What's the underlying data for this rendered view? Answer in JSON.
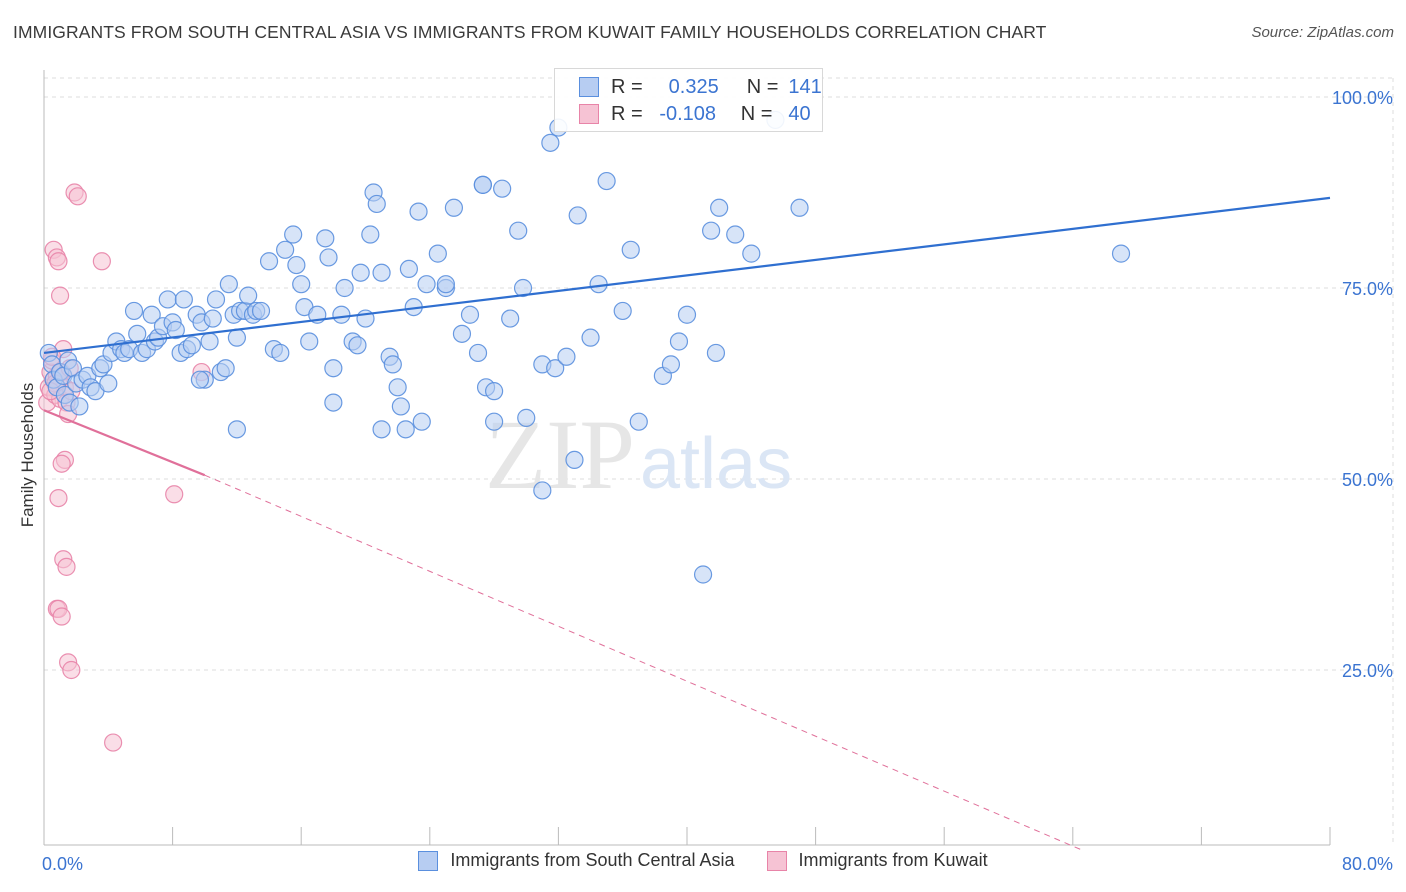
{
  "title": "IMMIGRANTS FROM SOUTH CENTRAL ASIA VS IMMIGRANTS FROM KUWAIT FAMILY HOUSEHOLDS CORRELATION CHART",
  "source": "Source: ZipAtlas.com",
  "watermark": {
    "part1": "ZIP",
    "part2": "atlas"
  },
  "legend": {
    "blue": {
      "r_label": "R =",
      "r_value": "0.325",
      "n_label": "N =",
      "n_value": "141"
    },
    "pink": {
      "r_label": "R =",
      "r_value": "-0.108",
      "n_label": "N =",
      "n_value": "40"
    }
  },
  "colors": {
    "blue": "#5a8fde",
    "blue_fill": "#b7cdf2",
    "blue_line": "#2f6fd0",
    "pink": "#e884a8",
    "pink_fill": "#f6c3d4",
    "pink_line": "#e0709a",
    "axis_text": "#3b74d1",
    "grid": "#dddddd"
  },
  "chart_data": {
    "type": "scatter",
    "title": "IMMIGRANTS FROM SOUTH CENTRAL ASIA VS IMMIGRANTS FROM KUWAIT FAMILY HOUSEHOLDS CORRELATION CHART",
    "xlabel": "",
    "ylabel": "Family Households",
    "xlim": [
      0,
      80
    ],
    "ylim": [
      0,
      105
    ],
    "x_tick_labels": [
      "0.0%",
      "80.0%"
    ],
    "y_ticks": [
      25,
      50,
      75,
      100
    ],
    "y_tick_labels": [
      "25.0%",
      "50.0%",
      "75.0%",
      "100.0%"
    ],
    "grid": true,
    "legend_position": "bottom",
    "series": [
      {
        "name": "Immigrants from South Central Asia",
        "color": "#5a8fde",
        "trend": {
          "x": [
            0,
            80
          ],
          "y": [
            66.5,
            86.8
          ]
        },
        "points": [
          [
            0.3,
            66.5
          ],
          [
            0.5,
            65
          ],
          [
            0.6,
            63
          ],
          [
            0.8,
            62
          ],
          [
            1.0,
            64
          ],
          [
            1.2,
            63.5
          ],
          [
            1.3,
            61
          ],
          [
            1.5,
            65.5
          ],
          [
            1.6,
            60
          ],
          [
            1.8,
            64.5
          ],
          [
            2.0,
            62.5
          ],
          [
            2.2,
            59.5
          ],
          [
            2.4,
            63
          ],
          [
            2.7,
            63.5
          ],
          [
            2.9,
            62
          ],
          [
            3.2,
            61.5
          ],
          [
            3.5,
            64.5
          ],
          [
            3.7,
            65
          ],
          [
            4.0,
            62.5
          ],
          [
            4.2,
            66.5
          ],
          [
            4.5,
            68
          ],
          [
            4.8,
            67
          ],
          [
            5.0,
            66.5
          ],
          [
            5.3,
            67
          ],
          [
            5.6,
            72
          ],
          [
            5.8,
            69
          ],
          [
            6.1,
            66.5
          ],
          [
            6.4,
            67
          ],
          [
            6.7,
            71.5
          ],
          [
            6.9,
            68
          ],
          [
            7.1,
            68.5
          ],
          [
            7.4,
            70
          ],
          [
            7.7,
            73.5
          ],
          [
            8.0,
            70.5
          ],
          [
            8.2,
            69.5
          ],
          [
            8.5,
            66.5
          ],
          [
            8.7,
            73.5
          ],
          [
            8.9,
            67
          ],
          [
            9.2,
            67.5
          ],
          [
            9.5,
            71.5
          ],
          [
            9.8,
            70.5
          ],
          [
            10.0,
            63
          ],
          [
            10.3,
            68
          ],
          [
            10.5,
            71
          ],
          [
            10.7,
            73.5
          ],
          [
            11.0,
            64
          ],
          [
            11.3,
            64.5
          ],
          [
            11.5,
            75.5
          ],
          [
            11.8,
            71.5
          ],
          [
            12.0,
            68.5
          ],
          [
            12.2,
            72
          ],
          [
            12.5,
            72
          ],
          [
            12.7,
            74
          ],
          [
            13.0,
            71.5
          ],
          [
            13.2,
            72
          ],
          [
            13.5,
            72
          ],
          [
            14.0,
            78.5
          ],
          [
            14.3,
            67
          ],
          [
            14.7,
            66.5
          ],
          [
            15.0,
            80
          ],
          [
            15.5,
            82
          ],
          [
            15.7,
            78
          ],
          [
            16.0,
            75.5
          ],
          [
            16.2,
            72.5
          ],
          [
            16.5,
            68
          ],
          [
            17.0,
            71.5
          ],
          [
            17.5,
            81.5
          ],
          [
            17.7,
            79
          ],
          [
            18.0,
            64.5
          ],
          [
            18.5,
            71.5
          ],
          [
            18.7,
            75
          ],
          [
            19.2,
            68
          ],
          [
            19.5,
            67.5
          ],
          [
            19.7,
            77
          ],
          [
            20.0,
            71
          ],
          [
            20.3,
            82
          ],
          [
            20.5,
            87.5
          ],
          [
            20.7,
            86
          ],
          [
            21.0,
            77
          ],
          [
            21.5,
            66
          ],
          [
            21.7,
            65
          ],
          [
            22.0,
            62
          ],
          [
            22.2,
            59.5
          ],
          [
            22.5,
            56.5
          ],
          [
            22.7,
            77.5
          ],
          [
            23.0,
            72.5
          ],
          [
            23.3,
            85
          ],
          [
            23.5,
            57.5
          ],
          [
            23.8,
            75.5
          ],
          [
            24.5,
            79.5
          ],
          [
            25.0,
            75
          ],
          [
            25.5,
            85.5
          ],
          [
            26.0,
            69
          ],
          [
            26.5,
            71.5
          ],
          [
            27.0,
            66.5
          ],
          [
            27.3,
            88.5
          ],
          [
            27.5,
            62
          ],
          [
            28.0,
            61.5
          ],
          [
            28.5,
            88
          ],
          [
            29.0,
            71
          ],
          [
            29.5,
            82.5
          ],
          [
            29.8,
            75
          ],
          [
            30.0,
            58
          ],
          [
            31.0,
            65
          ],
          [
            31.5,
            94
          ],
          [
            31.8,
            64.5
          ],
          [
            32.0,
            96
          ],
          [
            32.5,
            66
          ],
          [
            33.0,
            52.5
          ],
          [
            33.2,
            84.5
          ],
          [
            34.0,
            68.5
          ],
          [
            34.5,
            75.5
          ],
          [
            35.0,
            89
          ],
          [
            36.0,
            72
          ],
          [
            36.5,
            80
          ],
          [
            37.0,
            57.5
          ],
          [
            38.5,
            63.5
          ],
          [
            39.0,
            65
          ],
          [
            39.5,
            68
          ],
          [
            40.0,
            71.5
          ],
          [
            41.0,
            37.5
          ],
          [
            41.5,
            82.5
          ],
          [
            41.8,
            66.5
          ],
          [
            42.0,
            85.5
          ],
          [
            43.0,
            82
          ],
          [
            44.0,
            79.5
          ],
          [
            45.5,
            97
          ],
          [
            47.0,
            85.5
          ],
          [
            27.3,
            88.5
          ],
          [
            25.0,
            75.5
          ],
          [
            21.0,
            56.5
          ],
          [
            12.0,
            56.5
          ],
          [
            9.7,
            63
          ],
          [
            18.0,
            60
          ],
          [
            28.0,
            57.5
          ],
          [
            31.0,
            48.5
          ],
          [
            67.0,
            79.5
          ]
        ]
      },
      {
        "name": "Immigrants from Kuwait",
        "color": "#e884a8",
        "trend": {
          "x": [
            0,
            10
          ],
          "y": [
            59,
            50.5
          ]
        },
        "trend_extension": {
          "x": [
            10,
            64.5
          ],
          "y": [
            50.5,
            1.5
          ]
        },
        "points": [
          [
            0.2,
            60
          ],
          [
            0.3,
            62
          ],
          [
            0.4,
            64
          ],
          [
            0.5,
            65.5
          ],
          [
            0.6,
            63
          ],
          [
            0.7,
            61
          ],
          [
            0.8,
            63.5
          ],
          [
            0.9,
            62.5
          ],
          [
            1.0,
            60.5
          ],
          [
            1.1,
            64
          ],
          [
            0.6,
            80
          ],
          [
            0.8,
            79
          ],
          [
            0.9,
            78.5
          ],
          [
            1.0,
            74
          ],
          [
            1.2,
            67
          ],
          [
            1.3,
            62
          ],
          [
            1.4,
            60
          ],
          [
            1.5,
            58.5
          ],
          [
            1.7,
            61.5
          ],
          [
            1.9,
            87.5
          ],
          [
            2.1,
            87
          ],
          [
            1.3,
            52.5
          ],
          [
            1.1,
            52
          ],
          [
            0.9,
            47.5
          ],
          [
            1.2,
            39.5
          ],
          [
            1.4,
            38.5
          ],
          [
            0.8,
            33
          ],
          [
            0.9,
            33
          ],
          [
            1.1,
            32
          ],
          [
            1.5,
            26
          ],
          [
            1.7,
            25
          ],
          [
            3.6,
            78.5
          ],
          [
            4.3,
            15.5
          ],
          [
            8.1,
            48
          ],
          [
            9.8,
            64
          ],
          [
            1.0,
            64
          ],
          [
            0.5,
            66
          ],
          [
            0.7,
            62.5
          ],
          [
            0.4,
            61.5
          ],
          [
            1.6,
            64.5
          ]
        ]
      }
    ]
  },
  "bottom_legend": {
    "blue_label": "Immigrants from South Central Asia",
    "pink_label": "Immigrants from Kuwait"
  }
}
